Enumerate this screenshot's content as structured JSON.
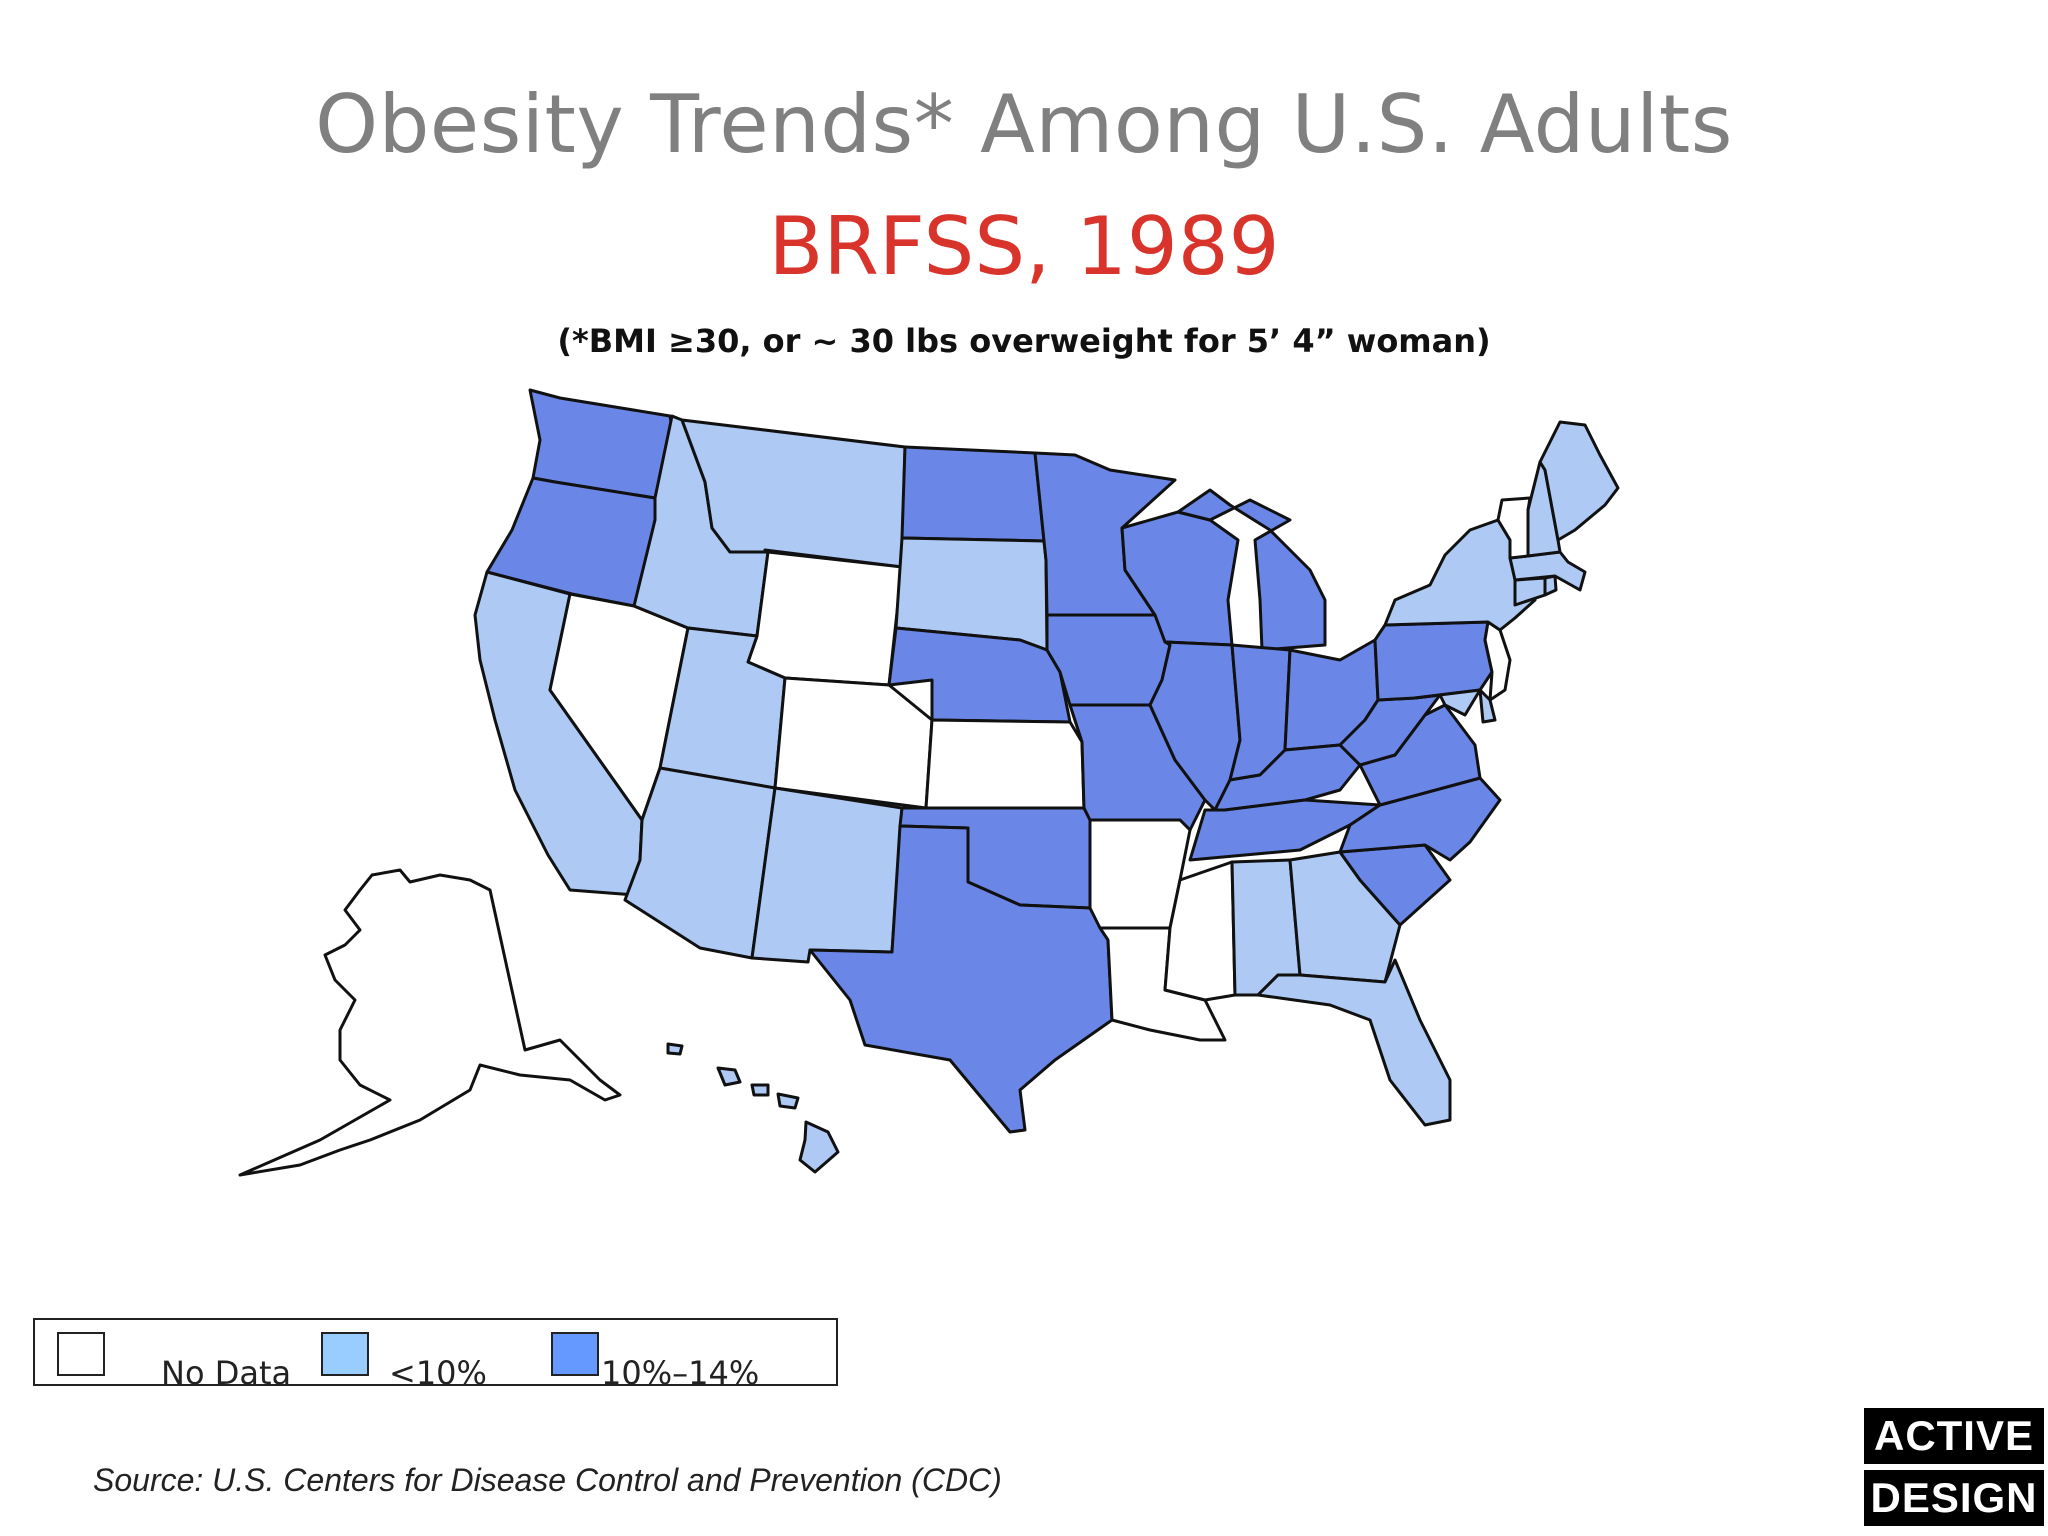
{
  "title": "Obesity Trends* Among U.S. Adults",
  "subtitle": "BRFSS, 1989",
  "note": "(*BMI ≥30, or ~ 30 lbs overweight for 5’ 4” woman)",
  "legend": {
    "items": [
      {
        "label": "No Data",
        "color": "#ffffff"
      },
      {
        "label": "<10%",
        "color": "#99ccff"
      },
      {
        "label": "10%–14%",
        "color": "#6699ff"
      }
    ]
  },
  "colors": {
    "no_data": "#ffffff",
    "lt10": "#adc9f4",
    "10to14": "#6a87e8"
  },
  "states": {
    "WA": "10to14",
    "OR": "10to14",
    "CA": "lt10",
    "NV": "no_data",
    "ID": "lt10",
    "MT": "lt10",
    "WY": "no_data",
    "UT": "lt10",
    "AZ": "lt10",
    "CO": "no_data",
    "NM": "lt10",
    "ND": "10to14",
    "SD": "lt10",
    "NE": "10to14",
    "KS": "no_data",
    "OK": "10to14",
    "TX": "10to14",
    "MN": "10to14",
    "IA": "10to14",
    "MO": "10to14",
    "AR": "no_data",
    "LA": "no_data",
    "WI": "10to14",
    "IL": "10to14",
    "MI": "10to14",
    "IN": "10to14",
    "OH": "10to14",
    "KY": "10to14",
    "TN": "10to14",
    "MS": "no_data",
    "AL": "lt10",
    "GA": "lt10",
    "FL": "lt10",
    "SC": "10to14",
    "NC": "10to14",
    "VA": "10to14",
    "WV": "10to14",
    "PA": "10to14",
    "NY": "lt10",
    "VT": "no_data",
    "NH": "lt10",
    "ME": "lt10",
    "MA": "lt10",
    "RI": "lt10",
    "CT": "lt10",
    "NJ": "no_data",
    "DE": "lt10",
    "MD": "lt10",
    "AK": "no_data",
    "HI": "lt10"
  },
  "source": "Source: U.S. Centers for Disease Control and Prevention (CDC)",
  "badge": {
    "line1": "ACTIVE",
    "line2": "DESIGN"
  }
}
